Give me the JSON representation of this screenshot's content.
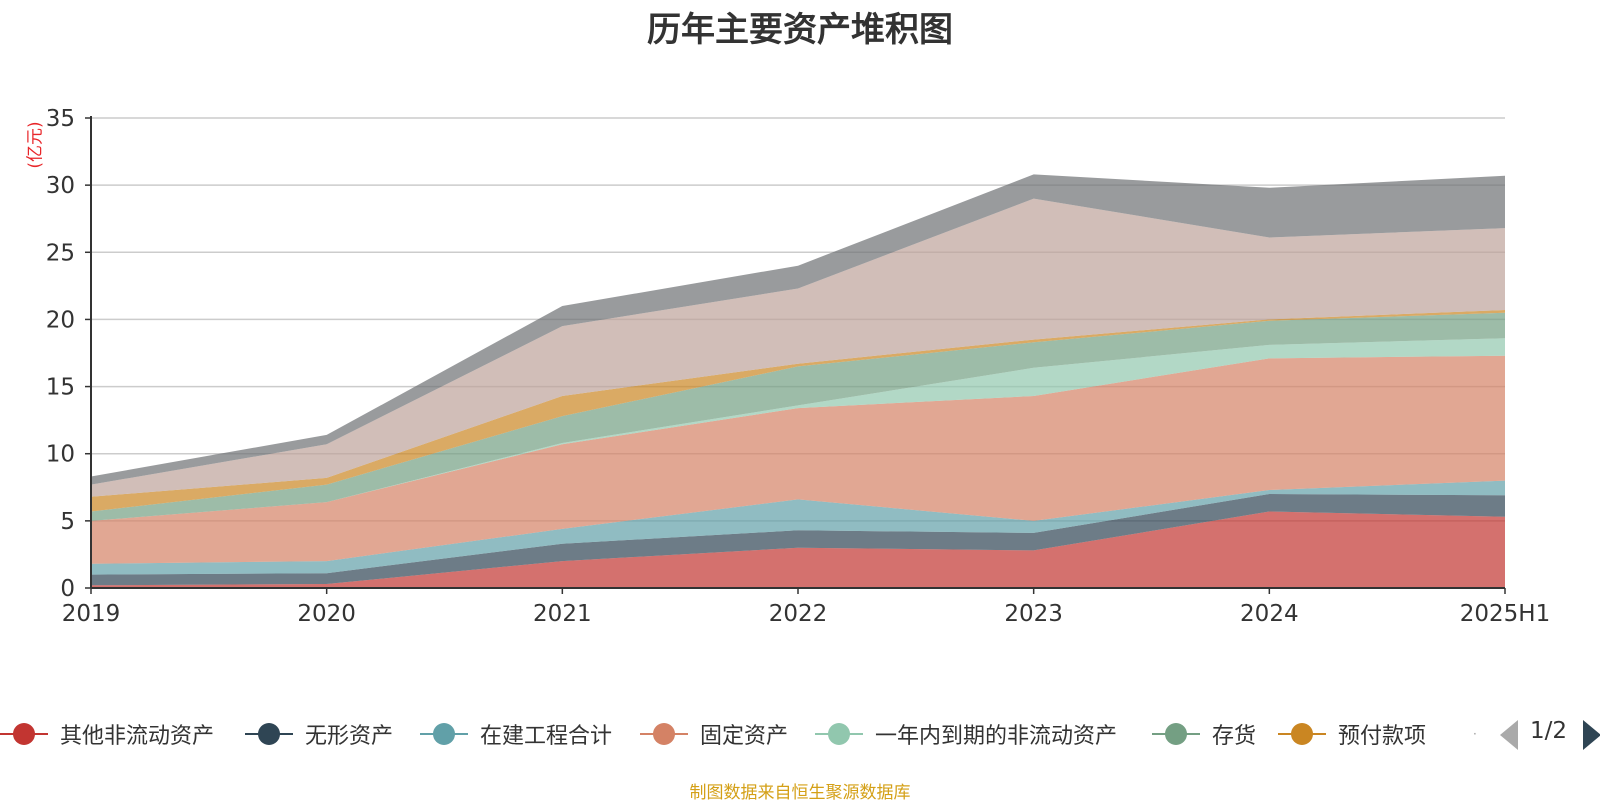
{
  "chart_data": {
    "type": "area",
    "title": "历年主要资产堆积图",
    "unit_label": "(亿元)",
    "x": [
      "2019",
      "2020",
      "2021",
      "2022",
      "2023",
      "2024",
      "2025H1"
    ],
    "ylim": [
      0,
      35
    ],
    "yticks": [
      0,
      5,
      10,
      15,
      20,
      25,
      30,
      35
    ],
    "grid": true,
    "stacked": true,
    "legend_position": "bottom",
    "series": [
      {
        "name": "其他非流动资产",
        "color": "#c23531",
        "values": [
          0.2,
          0.3,
          2.0,
          3.0,
          2.8,
          5.7,
          5.3
        ]
      },
      {
        "name": "无形资产",
        "color": "#2f4554",
        "values": [
          0.8,
          0.8,
          1.3,
          1.3,
          1.3,
          1.3,
          1.6
        ]
      },
      {
        "name": "在建工程合计",
        "color": "#61a0a8",
        "values": [
          0.8,
          0.9,
          1.1,
          2.3,
          0.9,
          0.3,
          1.1
        ]
      },
      {
        "name": "固定资产",
        "color": "#d48265",
        "values": [
          3.2,
          4.4,
          6.3,
          6.8,
          9.3,
          9.8,
          9.3
        ]
      },
      {
        "name": "一年内到期的非流动资产",
        "color": "#91c7ae",
        "values": [
          0.0,
          0.0,
          0.1,
          0.2,
          2.1,
          1.0,
          1.3
        ]
      },
      {
        "name": "存货",
        "color": "#749f83",
        "values": [
          0.7,
          1.3,
          2.0,
          2.9,
          1.9,
          1.8,
          1.9
        ]
      },
      {
        "name": "预付款项",
        "color": "#ca8622",
        "values": [
          1.1,
          0.5,
          1.5,
          0.2,
          0.2,
          0.1,
          0.2
        ]
      },
      {
        "name": "",
        "color": "#bda29a",
        "values": [
          0.9,
          2.5,
          5.2,
          5.6,
          10.5,
          6.1,
          6.1
        ]
      },
      {
        "name": "",
        "color": "#6e7074",
        "values": [
          0.6,
          0.7,
          1.5,
          1.7,
          1.8,
          3.7,
          3.9
        ]
      }
    ]
  },
  "legend": {
    "page_indicator": "1/2",
    "overflow_dots": "·"
  },
  "footer": {
    "source": "制图数据来自恒生聚源数据库"
  }
}
